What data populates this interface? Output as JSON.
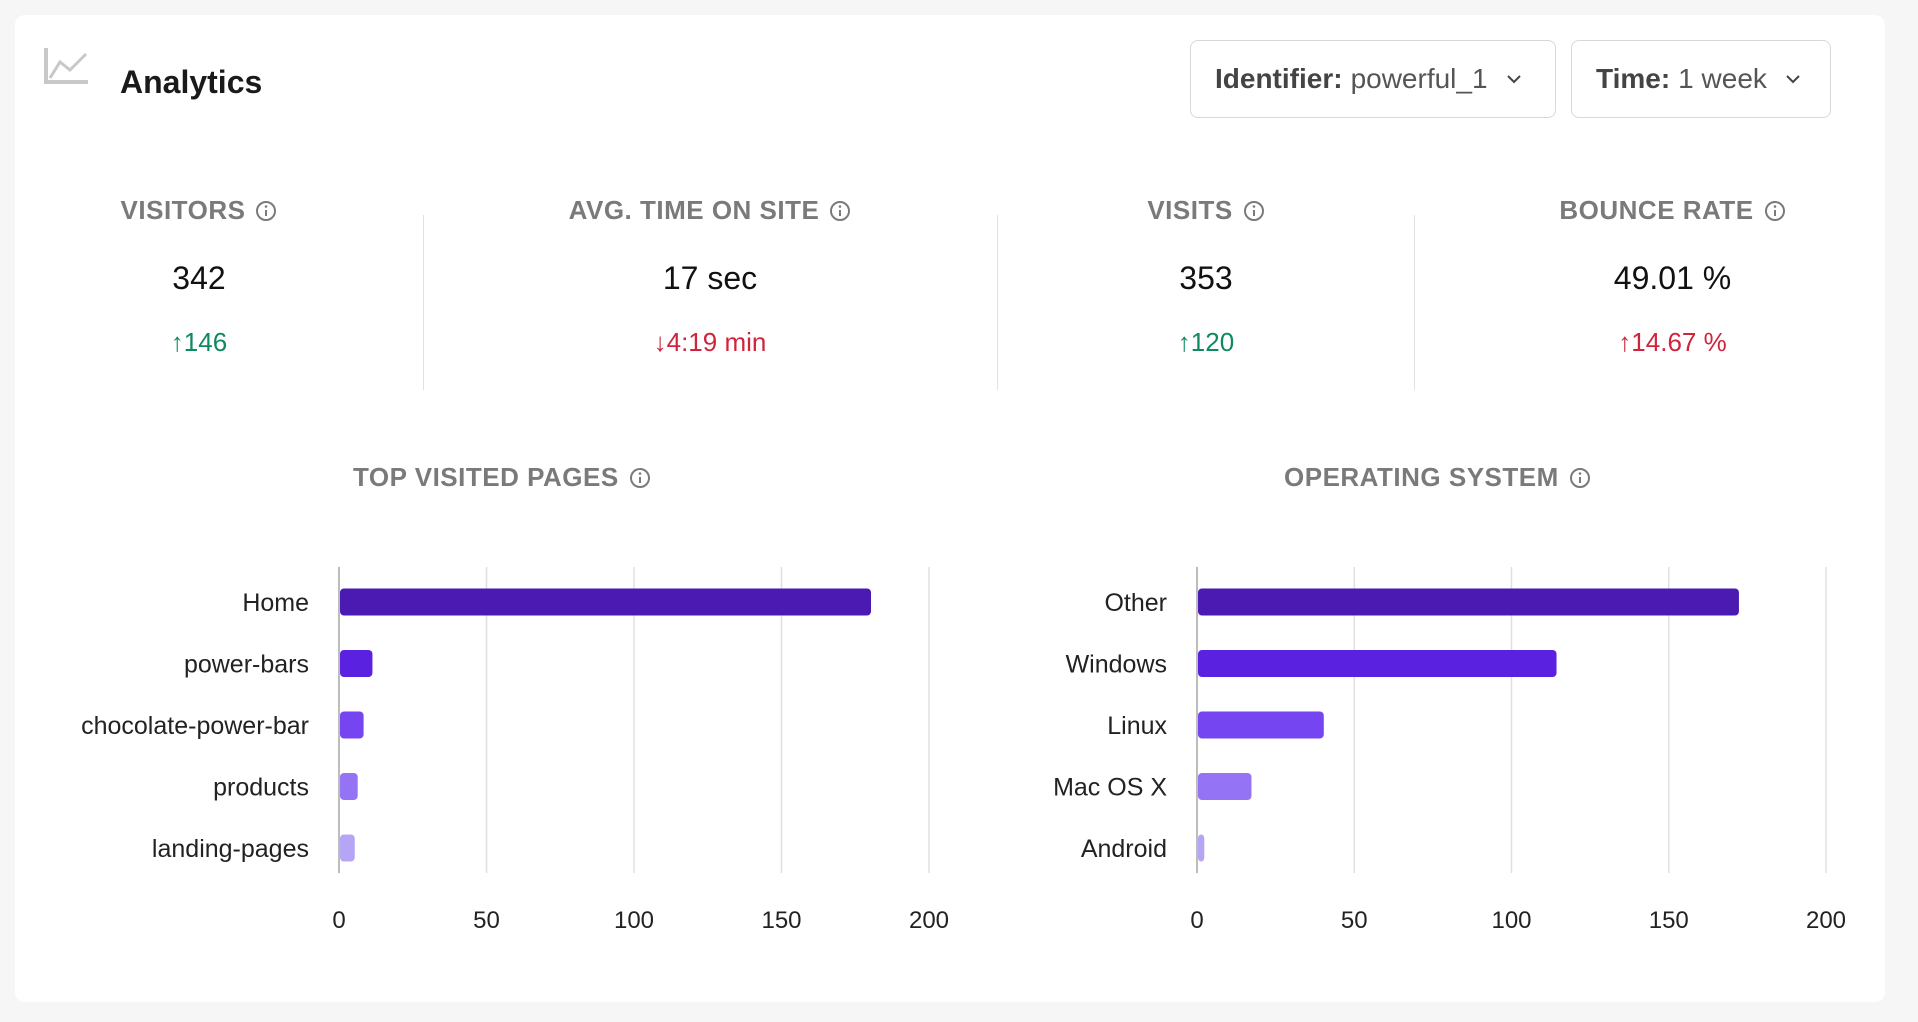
{
  "header": {
    "title": "Analytics",
    "icon": "line-chart-icon"
  },
  "filters": {
    "identifier": {
      "label": "Identifier:",
      "value": "powerful_1"
    },
    "time": {
      "label": "Time:",
      "value": "1 week"
    }
  },
  "stats": [
    {
      "label": "VISITORS",
      "value": "342",
      "delta": "146",
      "direction": "up",
      "color": "#0f8a5f"
    },
    {
      "label": "AVG. TIME ON SITE",
      "value": "17 sec",
      "delta": "4:19 min",
      "direction": "down",
      "color": "#d0243c"
    },
    {
      "label": "VISITS",
      "value": "353",
      "delta": "120",
      "direction": "up",
      "color": "#0f8a5f"
    },
    {
      "label": "BOUNCE RATE",
      "value": "49.01 %",
      "delta": "14.67 %",
      "direction": "up",
      "color": "#d0243c"
    }
  ],
  "sections": {
    "pages": "TOP VISITED PAGES",
    "os": "OPERATING SYSTEM"
  },
  "chart_data": [
    {
      "type": "bar",
      "orientation": "horizontal",
      "title": "TOP VISITED PAGES",
      "categories": [
        "Home",
        "power-bars",
        "chocolate-power-bar",
        "products",
        "landing-pages"
      ],
      "values": [
        180,
        11,
        8,
        6,
        5
      ],
      "colors": [
        "#4a1ab3",
        "#5b21e0",
        "#7645f2",
        "#9474f5",
        "#b6a4f7"
      ],
      "xlim": [
        0,
        200
      ],
      "xticks": [
        "0",
        "50",
        "100",
        "150",
        "200"
      ],
      "grid": true
    },
    {
      "type": "bar",
      "orientation": "horizontal",
      "title": "OPERATING SYSTEM",
      "categories": [
        "Other",
        "Windows",
        "Linux",
        "Mac OS X",
        "Android"
      ],
      "values": [
        172,
        114,
        40,
        17,
        2
      ],
      "colors": [
        "#4a1ab3",
        "#5b21e0",
        "#7645f2",
        "#9474f5",
        "#b6a4f7"
      ],
      "xlim": [
        0,
        200
      ],
      "xticks": [
        "0",
        "50",
        "100",
        "150",
        "200"
      ],
      "grid": true
    }
  ]
}
